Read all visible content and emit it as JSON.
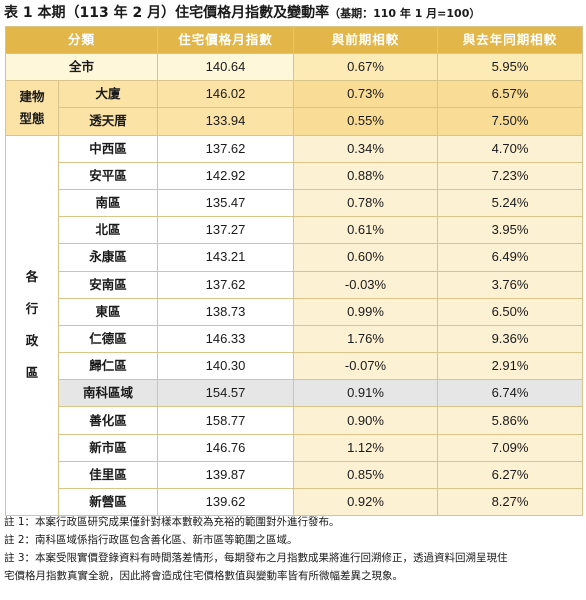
{
  "title": "表 1 本期（113 年 2 月）住宅價格月指數及變動率",
  "title_note": "（基期：110 年 1 月=100）",
  "headers": [
    "分類",
    "住宅價格月指數",
    "與前期相較",
    "與去年同期相較"
  ],
  "all_city": {
    "label": "全市",
    "index": "140.64",
    "mom": "0.67%",
    "yoy": "5.95%"
  },
  "building_group": "建物\n型態",
  "building": [
    {
      "label": "大廈",
      "index": "146.02",
      "mom": "0.73%",
      "yoy": "6.57%"
    },
    {
      "label": "透天厝",
      "index": "133.94",
      "mom": "0.55%",
      "yoy": "7.50%"
    }
  ],
  "district_group": "各\n行\n政\n區",
  "districts": [
    {
      "label": "中西區",
      "index": "137.62",
      "mom": "0.34%",
      "yoy": "4.70%"
    },
    {
      "label": "安平區",
      "index": "142.92",
      "mom": "0.88%",
      "yoy": "7.23%"
    },
    {
      "label": "南區",
      "index": "135.47",
      "mom": "0.78%",
      "yoy": "5.24%"
    },
    {
      "label": "北區",
      "index": "137.27",
      "mom": "0.61%",
      "yoy": "3.95%"
    },
    {
      "label": "永康區",
      "index": "143.21",
      "mom": "0.60%",
      "yoy": "6.49%"
    },
    {
      "label": "安南區",
      "index": "137.62",
      "mom": "-0.03%",
      "yoy": "3.76%"
    },
    {
      "label": "東區",
      "index": "138.73",
      "mom": "0.99%",
      "yoy": "6.50%"
    },
    {
      "label": "仁德區",
      "index": "146.33",
      "mom": "1.76%",
      "yoy": "9.36%"
    },
    {
      "label": "歸仁區",
      "index": "140.30",
      "mom": "-0.07%",
      "yoy": "2.91%"
    },
    {
      "label": "南科區域",
      "index": "154.57",
      "mom": "0.91%",
      "yoy": "6.74%"
    },
    {
      "label": "善化區",
      "index": "158.77",
      "mom": "0.90%",
      "yoy": "5.86%"
    },
    {
      "label": "新市區",
      "index": "146.76",
      "mom": "1.12%",
      "yoy": "7.09%"
    },
    {
      "label": "佳里區",
      "index": "139.87",
      "mom": "0.85%",
      "yoy": "6.27%"
    },
    {
      "label": "新營區",
      "index": "139.62",
      "mom": "0.92%",
      "yoy": "8.27%"
    }
  ],
  "notes": [
    "註 1：本案行政區研究成果僅針對樣本數較為充裕的範圍對外進行發布。",
    "註 2：南科區域係指行政區包含善化區、新市區等範圍之區域。",
    "註 3：本案受限實價登錄資料有時間落差情形，每期發布之月指數成果將進行回溯修正，透過資料回溯呈現住",
    "宅價格月指數真實全貌，因此將會造成住宅價格數值與變動率皆有所微幅差異之現象。"
  ]
}
